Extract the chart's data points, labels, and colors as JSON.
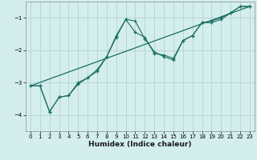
{
  "xlabel": "Humidex (Indice chaleur)",
  "ylabel": "",
  "background_color": "#d4eeee",
  "grid_color": "#b0cccc",
  "line_color": "#1a6e60",
  "xlim": [
    -0.5,
    23.5
  ],
  "ylim": [
    -4.5,
    -0.5
  ],
  "xticks": [
    0,
    1,
    2,
    3,
    4,
    5,
    6,
    7,
    8,
    9,
    10,
    11,
    12,
    13,
    14,
    15,
    16,
    17,
    18,
    19,
    20,
    21,
    22,
    23
  ],
  "yticks": [
    -4,
    -3,
    -2,
    -1
  ],
  "line1_x": [
    0,
    1,
    2,
    3,
    4,
    5,
    6,
    7,
    8,
    9,
    10,
    11,
    12,
    13,
    14,
    15,
    16,
    17,
    18,
    19,
    20,
    21,
    22,
    23
  ],
  "line1_y": [
    -3.1,
    -3.1,
    -3.9,
    -3.45,
    -3.4,
    -3.05,
    -2.85,
    -2.65,
    -2.2,
    -1.55,
    -1.05,
    -1.45,
    -1.6,
    -2.1,
    -2.15,
    -2.25,
    -1.7,
    -1.55,
    -1.15,
    -1.15,
    -1.05,
    -0.85,
    -0.65,
    -0.65
  ],
  "line2_x": [
    0,
    1,
    2,
    3,
    4,
    5,
    6,
    7,
    8,
    9,
    10,
    11,
    12,
    13,
    14,
    15,
    16,
    17,
    18,
    19,
    20,
    21,
    22,
    23
  ],
  "line2_y": [
    -3.1,
    -3.1,
    -3.9,
    -3.45,
    -3.4,
    -3.0,
    -2.85,
    -2.6,
    -2.2,
    -1.6,
    -1.05,
    -1.1,
    -1.65,
    -2.05,
    -2.2,
    -2.3,
    -1.7,
    -1.55,
    -1.15,
    -1.1,
    -1.0,
    -0.85,
    -0.65,
    -0.65
  ],
  "trend_x": [
    0,
    23
  ],
  "trend_y": [
    -3.1,
    -0.65
  ]
}
